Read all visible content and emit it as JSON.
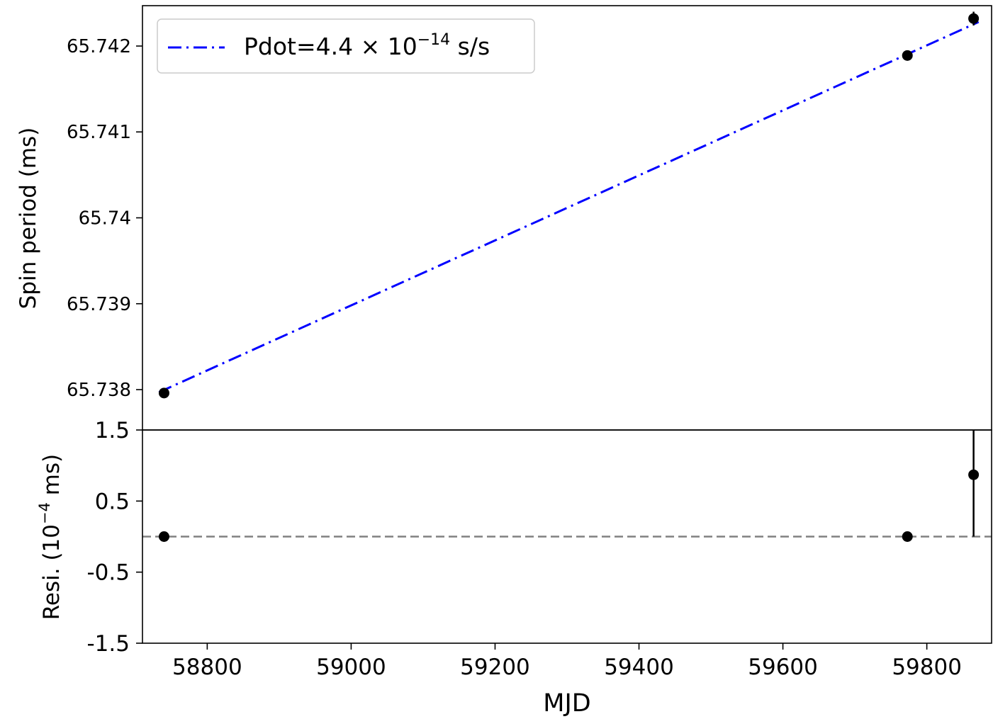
{
  "chart_data": [
    {
      "type": "scatter",
      "panel": "top",
      "ylabel": "Spin period (ms)",
      "xlim": [
        58710,
        59890
      ],
      "ylim": [
        65.73753,
        65.74247
      ],
      "yticks": [
        65.738,
        65.739,
        65.74,
        65.741,
        65.742
      ],
      "ytick_labels": [
        "65.738",
        "65.739",
        "65.74",
        "65.741",
        "65.742"
      ],
      "grid": false,
      "legend": {
        "placement": "top-left",
        "entries": [
          {
            "label_main": "Pdot=4.4 × 10",
            "label_sup": "−14",
            "label_tail": " s/s"
          }
        ]
      },
      "series": [
        {
          "name": "data",
          "style": "points-with-errorbars",
          "color": "#000000",
          "x": [
            58740,
            59773,
            59865
          ],
          "y": [
            65.73796,
            65.74189,
            65.74232
          ],
          "yerr": [
            1.5e-06,
            1.5e-06,
            8e-05
          ]
        },
        {
          "name": "Pdot=4.4 × 10^-14 s/s",
          "style": "dash-dot-line",
          "color": "#0000ff",
          "x": [
            58733,
            59872
          ],
          "y": [
            65.73797,
            65.74228
          ]
        }
      ]
    },
    {
      "type": "scatter",
      "panel": "bottom",
      "xlabel": "MJD",
      "ylabel_main": "Resi. (10",
      "ylabel_sup": "−4",
      "ylabel_tail": " ms)",
      "xlim": [
        58710,
        59890
      ],
      "ylim": [
        -1.5,
        1.5
      ],
      "xticks": [
        58800,
        59000,
        59200,
        59400,
        59600,
        59800
      ],
      "xtick_labels": [
        "58800",
        "59000",
        "59200",
        "59400",
        "59600",
        "59800"
      ],
      "yticks": [
        -1.5,
        -0.5,
        0.5,
        1.5
      ],
      "ytick_labels": [
        "-1.5",
        "-0.5",
        "0.5",
        "1.5"
      ],
      "zero_line": {
        "value": 0,
        "style": "dashed",
        "color": "#808080"
      },
      "grid": false,
      "series": [
        {
          "name": "residuals",
          "style": "points-with-errorbars",
          "color": "#000000",
          "x": [
            58740,
            59773,
            59865
          ],
          "y": [
            0.0,
            0.0,
            0.87
          ],
          "yerr": [
            0.0,
            0.0,
            0.87
          ]
        }
      ]
    }
  ]
}
